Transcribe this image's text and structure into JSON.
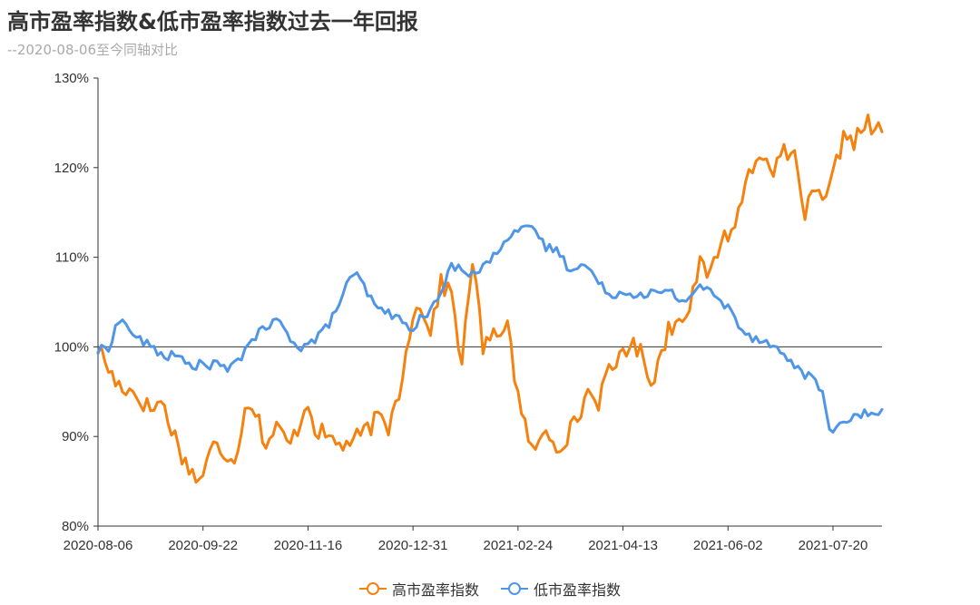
{
  "title": "高市盈率指数&低市盈率指数过去一年回报",
  "subtitle": "--2020-08-06至今同轴对比",
  "chart_data": {
    "type": "line",
    "ylim": [
      80,
      130
    ],
    "yticks": [
      "80%",
      "90%",
      "100%",
      "110%",
      "120%",
      "130%"
    ],
    "ytick_values": [
      80,
      90,
      100,
      110,
      120,
      130
    ],
    "baseline": 100,
    "xticks": [
      "2020-08-06",
      "2020-09-22",
      "2020-11-16",
      "2020-12-31",
      "2021-02-24",
      "2021-04-13",
      "2021-06-02",
      "2021-07-20"
    ],
    "xticks_index": [
      0,
      30,
      60,
      90,
      120,
      150,
      180,
      210
    ],
    "n_points": 225,
    "series": [
      {
        "name": "高市盈率指数",
        "color": "#f5820f",
        "keypoints": [
          [
            0,
            100
          ],
          [
            5,
            96
          ],
          [
            10,
            95
          ],
          [
            15,
            93
          ],
          [
            18,
            94
          ],
          [
            22,
            90
          ],
          [
            25,
            87
          ],
          [
            29,
            85
          ],
          [
            33,
            89
          ],
          [
            37,
            88
          ],
          [
            40,
            88
          ],
          [
            42,
            94
          ],
          [
            45,
            93
          ],
          [
            48,
            89
          ],
          [
            51,
            91
          ],
          [
            55,
            89
          ],
          [
            58,
            92
          ],
          [
            60,
            94
          ],
          [
            62,
            91
          ],
          [
            65,
            90
          ],
          [
            70,
            89
          ],
          [
            75,
            90
          ],
          [
            80,
            92
          ],
          [
            83,
            91
          ],
          [
            86,
            95
          ],
          [
            90,
            104
          ],
          [
            93,
            104
          ],
          [
            95,
            102
          ],
          [
            98,
            107
          ],
          [
            101,
            106
          ],
          [
            104,
            98
          ],
          [
            107,
            110
          ],
          [
            110,
            100
          ],
          [
            113,
            101
          ],
          [
            117,
            103
          ],
          [
            119,
            97
          ],
          [
            121,
            92
          ],
          [
            123,
            90
          ],
          [
            125,
            88
          ],
          [
            128,
            91
          ],
          [
            131,
            89
          ],
          [
            134,
            90
          ],
          [
            137,
            92
          ],
          [
            140,
            95
          ],
          [
            143,
            94
          ],
          [
            146,
            97
          ],
          [
            148,
            98
          ],
          [
            150,
            100
          ],
          [
            153,
            100
          ],
          [
            156,
            99
          ],
          [
            158,
            96
          ],
          [
            160,
            98
          ],
          [
            163,
            102
          ],
          [
            166,
            103
          ],
          [
            169,
            105
          ],
          [
            172,
            109
          ],
          [
            175,
            108
          ],
          [
            178,
            112
          ],
          [
            181,
            113
          ],
          [
            184,
            116
          ],
          [
            186,
            120
          ],
          [
            188,
            121
          ],
          [
            191,
            122
          ],
          [
            193,
            118
          ],
          [
            195,
            122
          ],
          [
            197,
            121
          ],
          [
            199,
            121
          ],
          [
            202,
            115
          ],
          [
            205,
            117
          ],
          [
            208,
            116
          ],
          [
            210,
            119
          ],
          [
            212,
            122
          ],
          [
            214,
            124
          ],
          [
            216,
            123
          ],
          [
            218,
            124
          ],
          [
            220,
            125
          ],
          [
            222,
            124
          ],
          [
            224,
            124
          ]
        ]
      },
      {
        "name": "低市盈率指数",
        "color": "#4f95e8",
        "keypoints": [
          [
            0,
            99.5
          ],
          [
            3,
            100
          ],
          [
            6,
            103
          ],
          [
            8,
            102.5
          ],
          [
            11,
            101
          ],
          [
            15,
            100
          ],
          [
            19,
            99
          ],
          [
            22,
            99
          ],
          [
            26,
            98
          ],
          [
            30,
            98
          ],
          [
            34,
            98
          ],
          [
            38,
            97.5
          ],
          [
            41,
            99
          ],
          [
            44,
            101
          ],
          [
            48,
            102
          ],
          [
            51,
            103
          ],
          [
            55,
            101
          ],
          [
            58,
            100
          ],
          [
            61,
            100.5
          ],
          [
            65,
            102
          ],
          [
            68,
            104
          ],
          [
            71,
            107
          ],
          [
            74,
            108
          ],
          [
            77,
            106
          ],
          [
            80,
            104
          ],
          [
            83,
            104
          ],
          [
            86,
            103
          ],
          [
            89,
            102
          ],
          [
            92,
            103
          ],
          [
            95,
            104
          ],
          [
            98,
            106
          ],
          [
            101,
            109
          ],
          [
            104,
            109
          ],
          [
            107,
            108
          ],
          [
            110,
            109
          ],
          [
            113,
            110
          ],
          [
            116,
            112
          ],
          [
            119,
            113
          ],
          [
            122,
            113
          ],
          [
            125,
            113
          ],
          [
            128,
            111
          ],
          [
            131,
            111
          ],
          [
            134,
            109
          ],
          [
            137,
            109
          ],
          [
            140,
            109
          ],
          [
            143,
            107
          ],
          [
            146,
            106
          ],
          [
            149,
            106
          ],
          [
            152,
            106
          ],
          [
            155,
            106
          ],
          [
            158,
            106
          ],
          [
            161,
            106
          ],
          [
            164,
            106
          ],
          [
            167,
            105
          ],
          [
            170,
            106
          ],
          [
            172,
            107
          ],
          [
            175,
            106
          ],
          [
            178,
            105
          ],
          [
            181,
            104
          ],
          [
            184,
            102
          ],
          [
            187,
            101
          ],
          [
            190,
            101
          ],
          [
            193,
            100
          ],
          [
            196,
            99
          ],
          [
            199,
            98
          ],
          [
            202,
            97
          ],
          [
            205,
            96
          ],
          [
            207,
            95
          ],
          [
            209,
            91
          ],
          [
            212,
            91
          ],
          [
            215,
            92
          ],
          [
            218,
            92.5
          ],
          [
            224,
            92.5
          ]
        ]
      }
    ]
  },
  "legend": {
    "high_label": "高市盈率指数",
    "low_label": "低市盈率指数"
  }
}
